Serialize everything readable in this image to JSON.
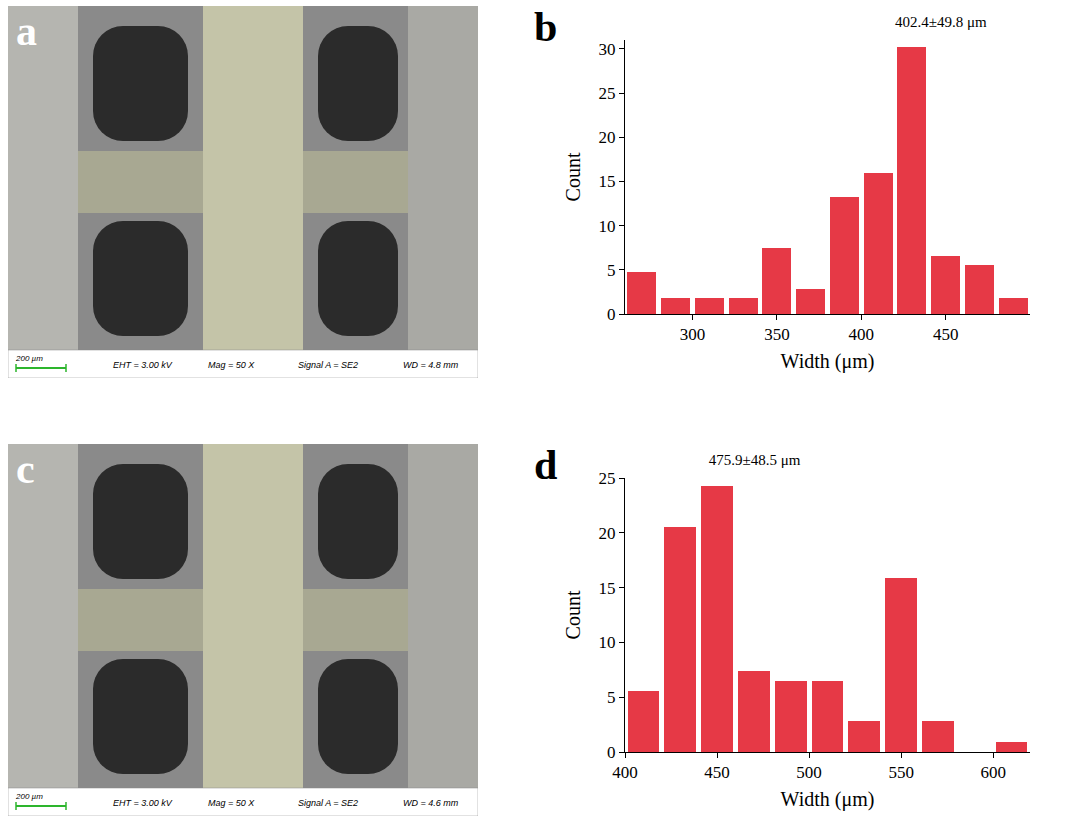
{
  "sem_images": [
    {
      "panel": "a",
      "scale_bar": "200 µm",
      "info": [
        "EHT = 3.00 kV",
        "Mag =  50 X",
        "Signal A = SE2",
        "WD = 4.8 mm"
      ]
    },
    {
      "panel": "c",
      "scale_bar": "200 µm",
      "info": [
        "EHT = 3.00 kV",
        "Mag =  50 X",
        "Signal A = SE2",
        "WD = 4.6 mm"
      ]
    }
  ],
  "chart_data": [
    {
      "panel": "b",
      "type": "histogram",
      "title": "402.4±49.8 μm",
      "x_label": "Width (μm)",
      "y_label": "Count",
      "bins": [
        260,
        280,
        300,
        320,
        340,
        360,
        380,
        400,
        420,
        440,
        460,
        480,
        500
      ],
      "values": [
        4.7,
        1.8,
        1.8,
        1.8,
        7.5,
        2.8,
        13.2,
        16.0,
        30.2,
        6.6,
        5.6,
        1.8
      ],
      "color": "#e63946",
      "xlim": [
        260,
        500
      ],
      "xticks": [
        300,
        350,
        400,
        450
      ],
      "ylim": [
        0,
        31
      ],
      "yticks": [
        0,
        5,
        10,
        15,
        20,
        25,
        30
      ]
    },
    {
      "panel": "d",
      "type": "histogram",
      "title": "475.9±48.5 μm",
      "x_label": "Width (μm)",
      "y_label": "Count",
      "bins": [
        400,
        420,
        440,
        460,
        480,
        500,
        520,
        540,
        560,
        580,
        600,
        620
      ],
      "values": [
        5.6,
        20.5,
        24.3,
        7.4,
        6.5,
        6.5,
        2.8,
        15.9,
        2.8,
        0,
        0.9
      ],
      "color": "#e63946",
      "xlim": [
        400,
        620
      ],
      "xticks": [
        400,
        450,
        500,
        550,
        600
      ],
      "ylim": [
        0,
        25
      ],
      "yticks": [
        0,
        5,
        10,
        15,
        20,
        25
      ]
    }
  ]
}
